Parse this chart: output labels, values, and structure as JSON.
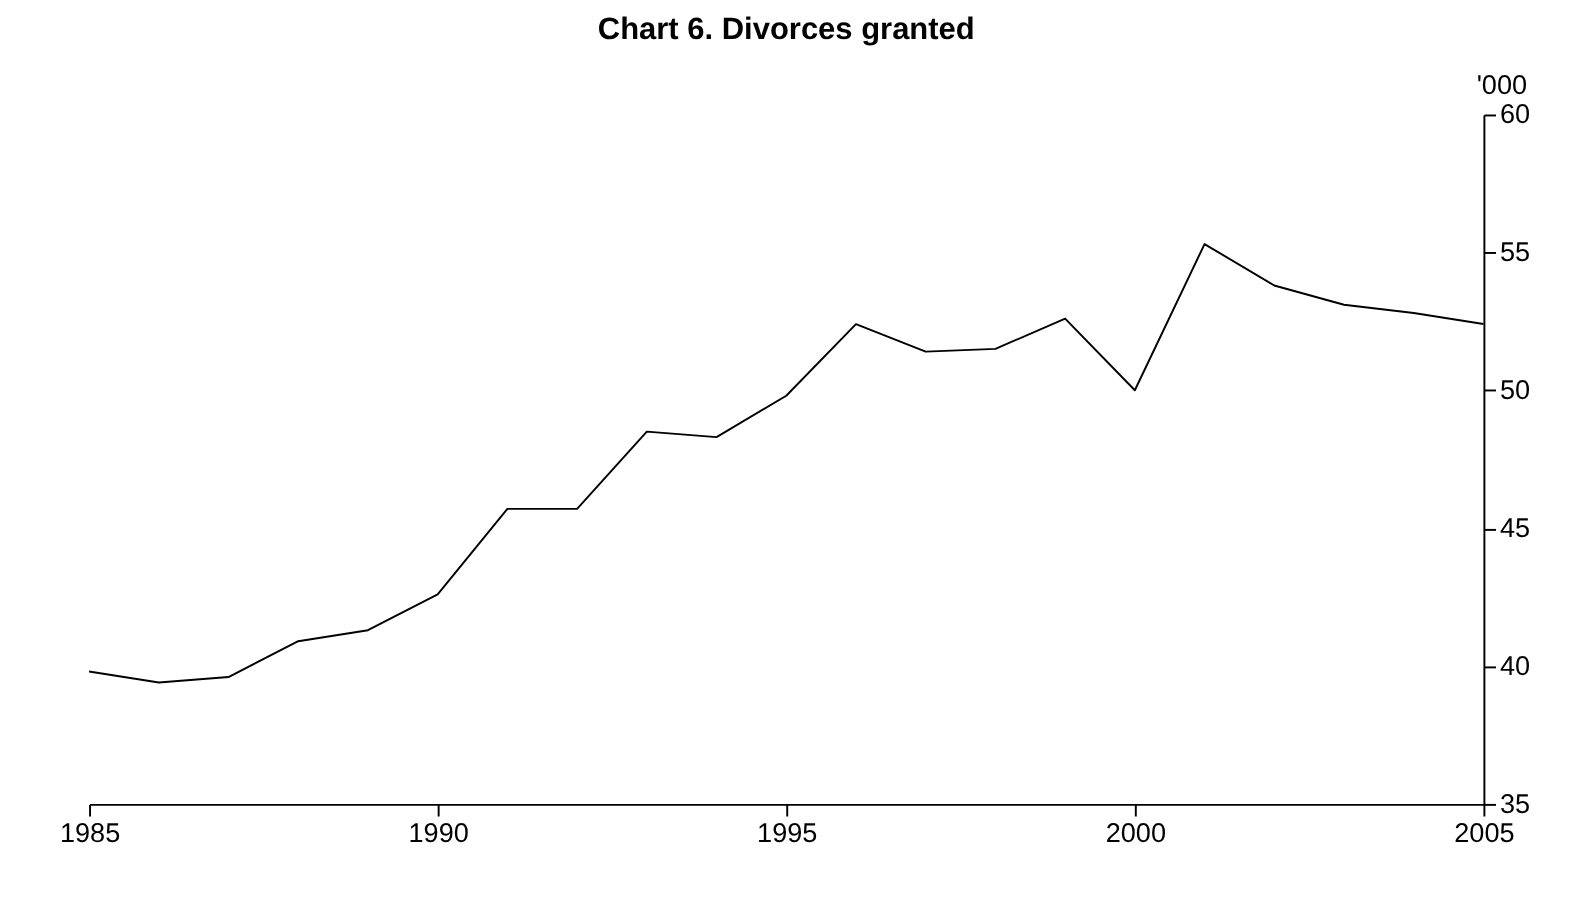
{
  "chart_data": {
    "type": "line",
    "title": "Chart 6. Divorces granted",
    "ylabel": "'000",
    "x": [
      1985,
      1986,
      1987,
      1988,
      1989,
      1990,
      1991,
      1992,
      1993,
      1994,
      1995,
      1996,
      1997,
      1998,
      1999,
      2000,
      2001,
      2002,
      2003,
      2004,
      2005
    ],
    "series": [
      {
        "color": "#000000",
        "values": [
          39.8,
          39.4,
          39.6,
          40.9,
          41.3,
          42.6,
          45.7,
          45.7,
          48.5,
          48.3,
          49.8,
          52.4,
          51.4,
          51.5,
          52.6,
          50.0,
          55.3,
          53.8,
          53.1,
          52.8,
          52.4
        ]
      }
    ],
    "xlim": [
      1985,
      2005
    ],
    "xticks": [
      1985,
      1990,
      1995,
      2000,
      2005
    ],
    "ylim": [
      35,
      60
    ],
    "yticks": [
      35,
      40,
      45,
      50,
      55,
      60
    ],
    "grid": false,
    "legend": false,
    "marker": "none",
    "line_style": "solid"
  }
}
